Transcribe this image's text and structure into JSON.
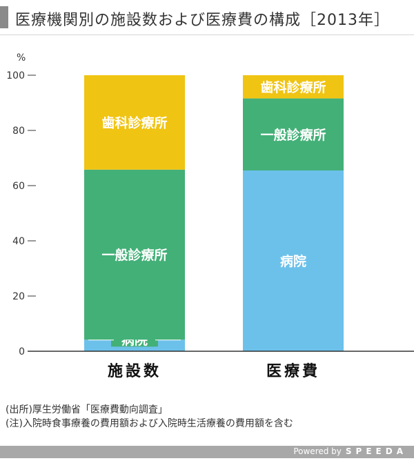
{
  "header": {
    "title": "医療機関別の施設数および医療費の構成［2013年］"
  },
  "chart_data": {
    "type": "bar",
    "stacked": true,
    "unit_label": "%",
    "ylim": [
      0,
      100
    ],
    "y_ticks": [
      0,
      20,
      40,
      60,
      80,
      100
    ],
    "categories": [
      "施設数",
      "医療費"
    ],
    "series": [
      {
        "name": "病院",
        "values": [
          4.2,
          65.5
        ],
        "color": "#6cc1ea"
      },
      {
        "name": "一般診療所",
        "values": [
          61.6,
          26.1
        ],
        "color": "#43b077"
      },
      {
        "name": "歯科診療所",
        "values": [
          34.2,
          8.4
        ],
        "color": "#f0c413"
      }
    ]
  },
  "notes": {
    "source": "(出所)厚生労働省「医療費動向調査」",
    "note": "(注)入院時食事療養の費用額および入院時生活療養の費用額を含む"
  },
  "footer": {
    "powered": "Powered by",
    "brand": "SPEEDA"
  }
}
